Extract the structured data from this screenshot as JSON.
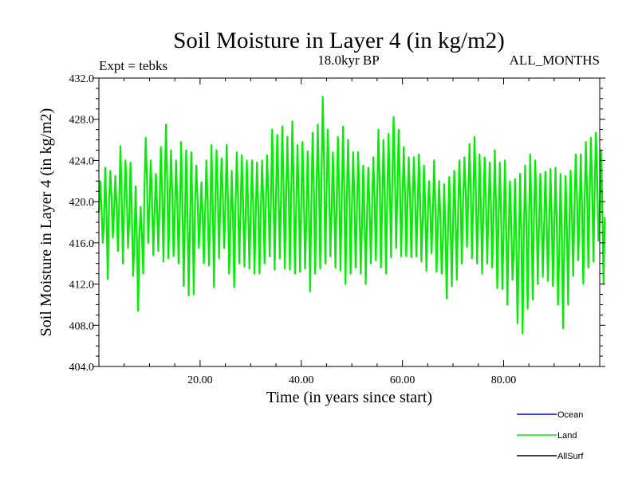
{
  "chart_data": {
    "type": "line",
    "title": "Soil Moisture in Layer 4 (in kg/m2)",
    "subtitle_left": "Expt = tebks",
    "subtitle_center": "18.0kyr BP",
    "subtitle_right": "ALL_MONTHS",
    "xlabel": "Time (in years since start)",
    "ylabel": "Soil Moisture in Layer 4 (in kg/m2)",
    "xlim": [
      0,
      99
    ],
    "ylim": [
      404,
      432
    ],
    "x_ticks": [
      20,
      40,
      60,
      80
    ],
    "x_tick_labels": [
      "20.00",
      "40.00",
      "60.00",
      "80.00"
    ],
    "y_ticks": [
      404,
      408,
      412,
      416,
      420,
      424,
      428,
      432
    ],
    "y_tick_labels": [
      "404.0",
      "408.0",
      "412.0",
      "416.0",
      "420.0",
      "424.0",
      "428.0",
      "432.0"
    ],
    "legend": [
      {
        "name": "Ocean",
        "color": "#0000ff"
      },
      {
        "name": "Land",
        "color": "#00ee00"
      },
      {
        "name": "AllSurf",
        "color": "#000000"
      }
    ],
    "series": [
      {
        "name": "Land",
        "color": "#00ee00",
        "x": [
          0,
          1,
          2,
          3,
          4,
          5,
          6,
          7,
          8,
          9,
          10,
          11,
          12,
          13,
          14,
          15,
          16,
          17,
          18,
          19,
          20,
          21,
          22,
          23,
          24,
          25,
          26,
          27,
          28,
          29,
          30,
          31,
          32,
          33,
          34,
          35,
          36,
          37,
          38,
          39,
          40,
          41,
          42,
          43,
          44,
          45,
          46,
          47,
          48,
          49,
          50,
          51,
          52,
          53,
          54,
          55,
          56,
          57,
          58,
          59,
          60,
          61,
          62,
          63,
          64,
          65,
          66,
          67,
          68,
          69,
          70,
          71,
          72,
          73,
          74,
          75,
          76,
          77,
          78,
          79,
          80,
          81,
          82,
          83,
          84,
          85,
          86,
          87,
          88,
          89,
          90,
          91,
          92,
          93,
          94,
          95,
          96,
          97,
          98,
          99
        ],
        "max": [
          422.0,
          423.3,
          423.0,
          422.5,
          425.4,
          424.0,
          423.8,
          421.5,
          419.5,
          426.2,
          424.0,
          422.7,
          425.3,
          427.5,
          425.0,
          424.0,
          425.8,
          425.0,
          424.8,
          423.5,
          421.9,
          424.0,
          425.5,
          425.0,
          424.2,
          425.5,
          423.0,
          424.8,
          424.5,
          424.0,
          424.0,
          423.8,
          424.0,
          424.5,
          427.0,
          426.5,
          427.3,
          426.3,
          427.8,
          425.5,
          425.8,
          424.9,
          426.7,
          427.5,
          430.2,
          427.0,
          424.8,
          426.3,
          427.3,
          426.0,
          424.8,
          424.8,
          423.5,
          423.3,
          424.3,
          427.0,
          426.0,
          426.6,
          428.2,
          427.0,
          425.3,
          424.3,
          424.3,
          424.6,
          423.5,
          422.0,
          424.0,
          422.0,
          421.7,
          422.4,
          423.0,
          424.0,
          424.3,
          425.6,
          426.3,
          424.6,
          424.3,
          423.8,
          425.0,
          423.8,
          424.0,
          422.0,
          422.2,
          422.7,
          423.5,
          424.6,
          424.0,
          422.7,
          422.9,
          423.2,
          423.3,
          422.7,
          422.5,
          423.0,
          424.6,
          424.6,
          425.8,
          426.2,
          426.7,
          425.0
        ],
        "min": [
          416.0,
          412.5,
          416.5,
          415.2,
          414.0,
          415.5,
          412.8,
          409.4,
          413.0,
          416.0,
          414.8,
          415.2,
          414.2,
          414.5,
          414.7,
          414.0,
          411.8,
          410.9,
          411.0,
          415.5,
          414.0,
          413.8,
          411.7,
          414.5,
          415.5,
          413.0,
          411.7,
          414.0,
          413.7,
          413.5,
          413.0,
          413.0,
          414.0,
          414.7,
          413.4,
          414.5,
          413.5,
          413.4,
          413.0,
          413.2,
          413.5,
          411.3,
          413.0,
          413.5,
          414.0,
          414.7,
          413.6,
          413.3,
          412.0,
          413.0,
          413.6,
          413.0,
          412.0,
          414.0,
          414.3,
          413.6,
          413.0,
          414.6,
          415.5,
          414.7,
          414.7,
          414.6,
          414.7,
          414.2,
          413.3,
          415.0,
          413.2,
          413.0,
          410.6,
          411.8,
          412.4,
          414.0,
          415.6,
          414.5,
          414.0,
          413.0,
          414.0,
          413.6,
          411.6,
          411.5,
          410.0,
          412.4,
          408.2,
          407.2,
          409.6,
          410.5,
          412.0,
          412.7,
          412.3,
          411.8,
          410.0,
          407.7,
          410.0,
          412.8,
          414.3,
          412.0,
          413.6,
          414.2,
          416.2,
          412.0
        ]
      }
    ]
  }
}
